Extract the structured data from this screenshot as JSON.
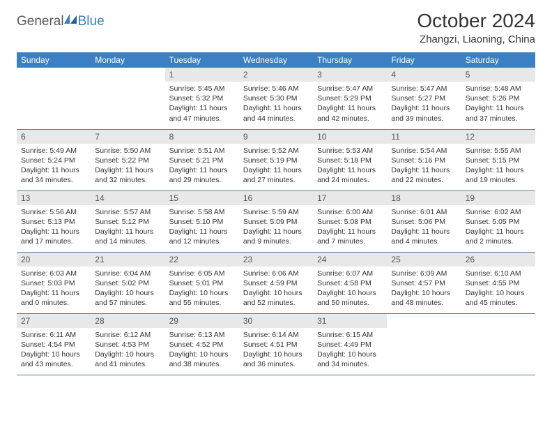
{
  "brand": {
    "part1": "General",
    "part2": "Blue"
  },
  "title": "October 2024",
  "location": "Zhangzi, Liaoning, China",
  "colors": {
    "header_bg": "#3b7fc4",
    "header_fg": "#ffffff",
    "daynum_bg": "#e8e8e8",
    "row_border": "#5a7a9a",
    "logo_gray": "#5a5a5a",
    "logo_blue": "#3b7fc4",
    "text": "#333333"
  },
  "fonts": {
    "family": "Arial",
    "title_size_pt": 21,
    "location_size_pt": 11,
    "header_size_pt": 9,
    "cell_size_pt": 8
  },
  "weekdays": [
    "Sunday",
    "Monday",
    "Tuesday",
    "Wednesday",
    "Thursday",
    "Friday",
    "Saturday"
  ],
  "grid": {
    "rows": 5,
    "cols": 7,
    "first_weekday_index": 2,
    "days_in_month": 31
  },
  "days": {
    "1": {
      "sunrise": "5:45 AM",
      "sunset": "5:32 PM",
      "daylight": "11 hours and 47 minutes."
    },
    "2": {
      "sunrise": "5:46 AM",
      "sunset": "5:30 PM",
      "daylight": "11 hours and 44 minutes."
    },
    "3": {
      "sunrise": "5:47 AM",
      "sunset": "5:29 PM",
      "daylight": "11 hours and 42 minutes."
    },
    "4": {
      "sunrise": "5:47 AM",
      "sunset": "5:27 PM",
      "daylight": "11 hours and 39 minutes."
    },
    "5": {
      "sunrise": "5:48 AM",
      "sunset": "5:26 PM",
      "daylight": "11 hours and 37 minutes."
    },
    "6": {
      "sunrise": "5:49 AM",
      "sunset": "5:24 PM",
      "daylight": "11 hours and 34 minutes."
    },
    "7": {
      "sunrise": "5:50 AM",
      "sunset": "5:22 PM",
      "daylight": "11 hours and 32 minutes."
    },
    "8": {
      "sunrise": "5:51 AM",
      "sunset": "5:21 PM",
      "daylight": "11 hours and 29 minutes."
    },
    "9": {
      "sunrise": "5:52 AM",
      "sunset": "5:19 PM",
      "daylight": "11 hours and 27 minutes."
    },
    "10": {
      "sunrise": "5:53 AM",
      "sunset": "5:18 PM",
      "daylight": "11 hours and 24 minutes."
    },
    "11": {
      "sunrise": "5:54 AM",
      "sunset": "5:16 PM",
      "daylight": "11 hours and 22 minutes."
    },
    "12": {
      "sunrise": "5:55 AM",
      "sunset": "5:15 PM",
      "daylight": "11 hours and 19 minutes."
    },
    "13": {
      "sunrise": "5:56 AM",
      "sunset": "5:13 PM",
      "daylight": "11 hours and 17 minutes."
    },
    "14": {
      "sunrise": "5:57 AM",
      "sunset": "5:12 PM",
      "daylight": "11 hours and 14 minutes."
    },
    "15": {
      "sunrise": "5:58 AM",
      "sunset": "5:10 PM",
      "daylight": "11 hours and 12 minutes."
    },
    "16": {
      "sunrise": "5:59 AM",
      "sunset": "5:09 PM",
      "daylight": "11 hours and 9 minutes."
    },
    "17": {
      "sunrise": "6:00 AM",
      "sunset": "5:08 PM",
      "daylight": "11 hours and 7 minutes."
    },
    "18": {
      "sunrise": "6:01 AM",
      "sunset": "5:06 PM",
      "daylight": "11 hours and 4 minutes."
    },
    "19": {
      "sunrise": "6:02 AM",
      "sunset": "5:05 PM",
      "daylight": "11 hours and 2 minutes."
    },
    "20": {
      "sunrise": "6:03 AM",
      "sunset": "5:03 PM",
      "daylight": "11 hours and 0 minutes."
    },
    "21": {
      "sunrise": "6:04 AM",
      "sunset": "5:02 PM",
      "daylight": "10 hours and 57 minutes."
    },
    "22": {
      "sunrise": "6:05 AM",
      "sunset": "5:01 PM",
      "daylight": "10 hours and 55 minutes."
    },
    "23": {
      "sunrise": "6:06 AM",
      "sunset": "4:59 PM",
      "daylight": "10 hours and 52 minutes."
    },
    "24": {
      "sunrise": "6:07 AM",
      "sunset": "4:58 PM",
      "daylight": "10 hours and 50 minutes."
    },
    "25": {
      "sunrise": "6:09 AM",
      "sunset": "4:57 PM",
      "daylight": "10 hours and 48 minutes."
    },
    "26": {
      "sunrise": "6:10 AM",
      "sunset": "4:55 PM",
      "daylight": "10 hours and 45 minutes."
    },
    "27": {
      "sunrise": "6:11 AM",
      "sunset": "4:54 PM",
      "daylight": "10 hours and 43 minutes."
    },
    "28": {
      "sunrise": "6:12 AM",
      "sunset": "4:53 PM",
      "daylight": "10 hours and 41 minutes."
    },
    "29": {
      "sunrise": "6:13 AM",
      "sunset": "4:52 PM",
      "daylight": "10 hours and 38 minutes."
    },
    "30": {
      "sunrise": "6:14 AM",
      "sunset": "4:51 PM",
      "daylight": "10 hours and 36 minutes."
    },
    "31": {
      "sunrise": "6:15 AM",
      "sunset": "4:49 PM",
      "daylight": "10 hours and 34 minutes."
    }
  },
  "labels": {
    "sunrise": "Sunrise:",
    "sunset": "Sunset:",
    "daylight": "Daylight:"
  }
}
